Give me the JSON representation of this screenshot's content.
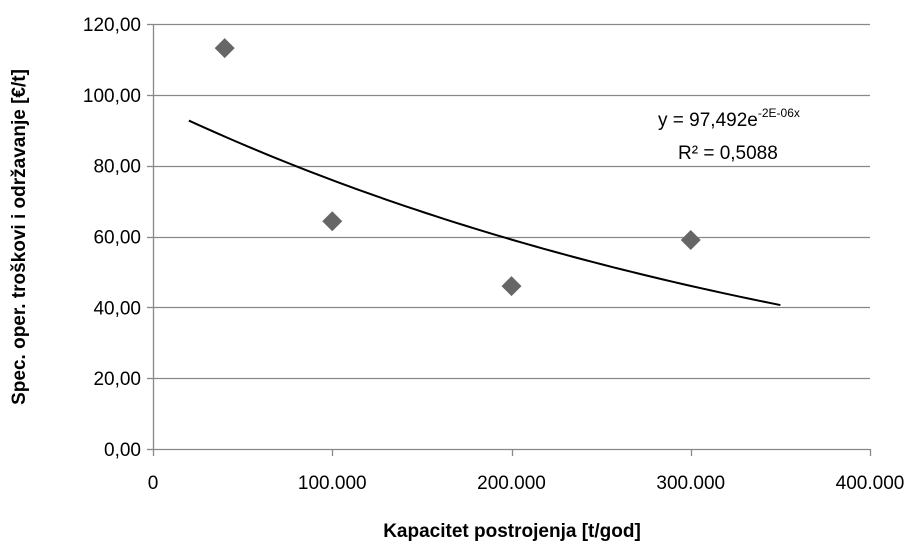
{
  "chart_data": {
    "type": "scatter",
    "title": "",
    "xlabel": "Kapacitet postrojenja [t/god]",
    "ylabel": "Spec. oper. troškovi i održavanje [€/t]",
    "xlim": [
      0,
      400000
    ],
    "ylim": [
      0,
      120
    ],
    "x_ticks": [
      0,
      100000,
      200000,
      300000,
      400000
    ],
    "x_tick_labels": [
      "0",
      "100.000",
      "200.000",
      "300.000",
      "400.000"
    ],
    "y_ticks": [
      0,
      20,
      40,
      60,
      80,
      100,
      120
    ],
    "y_tick_labels": [
      "0,00",
      "20,00",
      "40,00",
      "60,00",
      "80,00",
      "100,00",
      "120,00"
    ],
    "grid": "horizontal",
    "marker_color": "#666666",
    "marker_shape": "diamond",
    "series": [
      {
        "x": [
          40000,
          100000,
          200000,
          300000
        ],
        "y": [
          113.2,
          64.3,
          46.0,
          59.0
        ]
      }
    ],
    "trendline": {
      "type": "exponential",
      "a": 97.492,
      "b": -2.5e-06,
      "x_range": [
        20000,
        350000
      ],
      "equation_prefix": "y = 97,492e",
      "equation_exponent": "-2E-06x",
      "r_squared_label": "R² = 0,5088"
    }
  }
}
